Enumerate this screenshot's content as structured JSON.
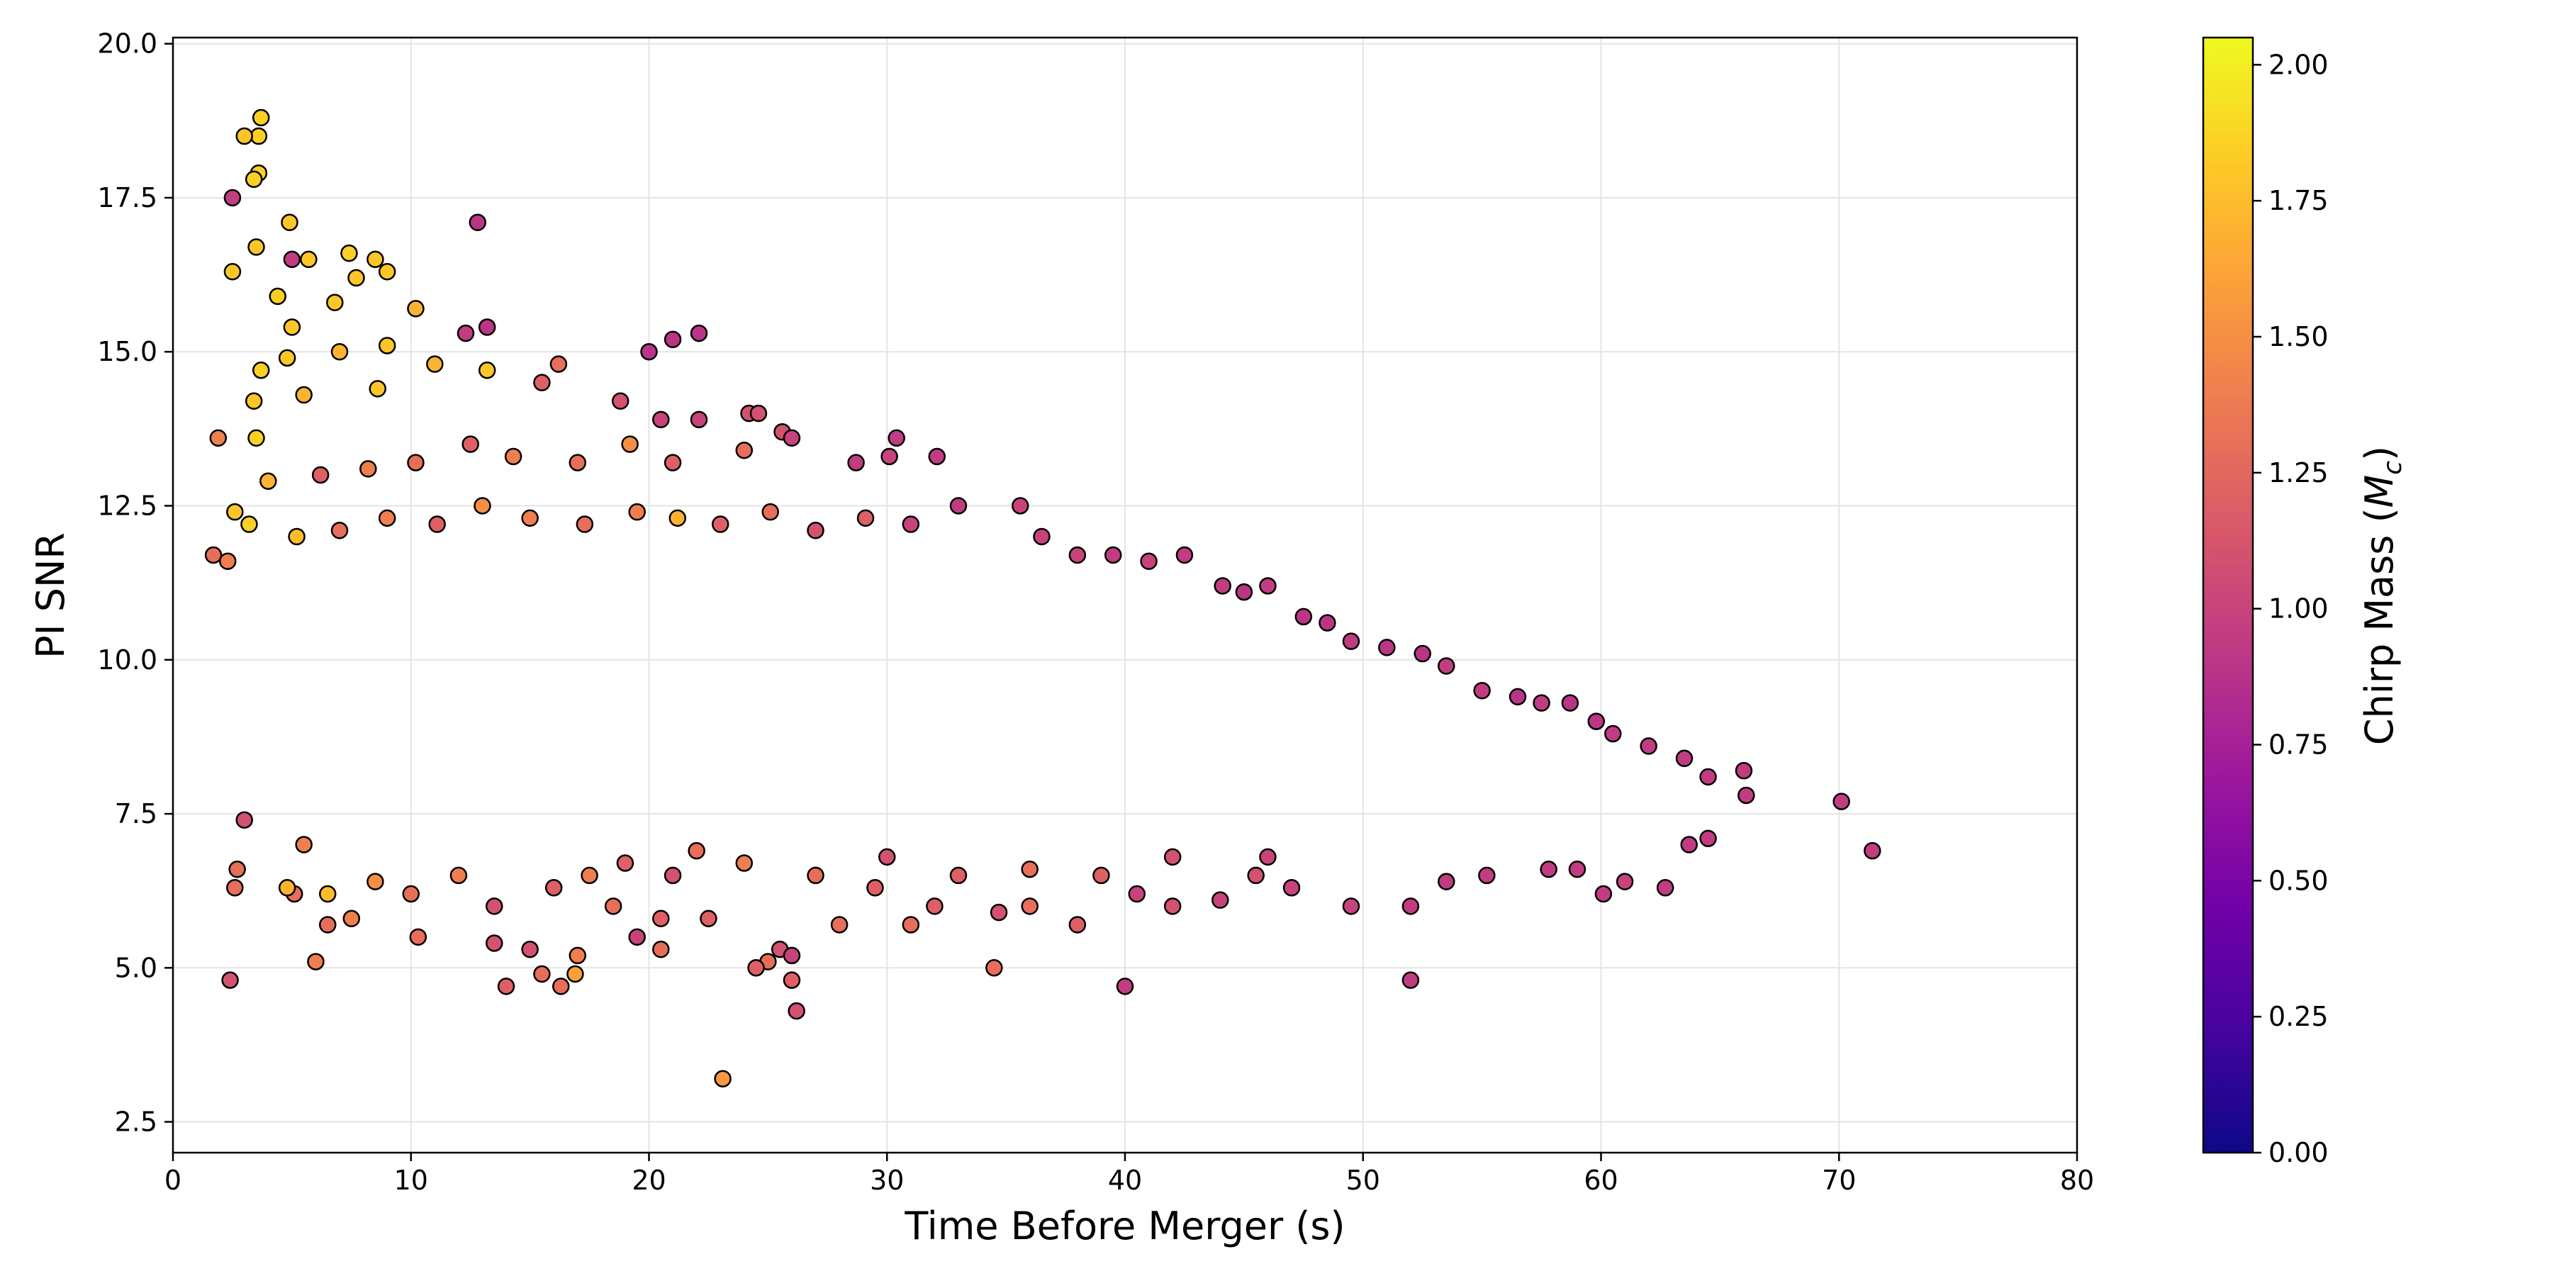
{
  "chart_data": {
    "type": "scatter",
    "title": "",
    "xlabel": "Time Before Merger (s)",
    "ylabel": "PI SNR",
    "xlim": [
      0,
      80
    ],
    "ylim": [
      2.0,
      20.1
    ],
    "x_ticks": [
      "0",
      "10",
      "20",
      "30",
      "40",
      "50",
      "60",
      "70",
      "80"
    ],
    "y_ticks": [
      "2.5",
      "5.0",
      "7.5",
      "10.0",
      "12.5",
      "15.0",
      "17.5",
      "20.0"
    ],
    "grid": true,
    "colorbar": {
      "label": "Chirp Mass (M_c)",
      "label_prefix": "Chirp Mass (",
      "label_symbol": "M",
      "label_subscript": "c",
      "label_suffix": ")",
      "range": [
        0.0,
        2.05
      ],
      "ticks": [
        "0.00",
        "0.25",
        "0.50",
        "0.75",
        "1.00",
        "1.25",
        "1.50",
        "1.75",
        "2.00"
      ],
      "colormap": "plasma",
      "colors": [
        "#0d0887",
        "#46039f",
        "#7201a8",
        "#9c179e",
        "#bd3786",
        "#d8576b",
        "#ed7953",
        "#fb9f3a",
        "#fdca26",
        "#f0f921"
      ]
    },
    "marker_edge_color": "#000000",
    "points": [
      [
        3.7,
        18.8,
        1.85
      ],
      [
        3.6,
        18.5,
        1.85
      ],
      [
        3.0,
        18.5,
        1.8
      ],
      [
        3.6,
        17.9,
        1.85
      ],
      [
        3.4,
        17.8,
        1.85
      ],
      [
        2.5,
        17.5,
        0.95
      ],
      [
        4.9,
        17.1,
        1.8
      ],
      [
        12.8,
        17.1,
        0.9
      ],
      [
        3.5,
        16.7,
        1.8
      ],
      [
        7.4,
        16.6,
        1.85
      ],
      [
        2.5,
        16.3,
        1.8
      ],
      [
        8.5,
        16.5,
        1.8
      ],
      [
        5.7,
        16.5,
        1.8
      ],
      [
        5.0,
        16.5,
        0.95
      ],
      [
        7.7,
        16.2,
        1.8
      ],
      [
        9.0,
        16.3,
        1.8
      ],
      [
        4.4,
        15.9,
        1.85
      ],
      [
        6.8,
        15.8,
        1.8
      ],
      [
        10.2,
        15.7,
        1.7
      ],
      [
        13.2,
        15.4,
        0.9
      ],
      [
        5.0,
        15.4,
        1.8
      ],
      [
        9.0,
        15.1,
        1.8
      ],
      [
        12.3,
        15.3,
        0.95
      ],
      [
        21.0,
        15.2,
        0.9
      ],
      [
        22.1,
        15.3,
        0.9
      ],
      [
        20.0,
        15.0,
        0.9
      ],
      [
        7.0,
        15.0,
        1.7
      ],
      [
        11.0,
        14.8,
        1.7
      ],
      [
        3.7,
        14.7,
        1.85
      ],
      [
        4.8,
        14.9,
        1.8
      ],
      [
        16.2,
        14.8,
        1.3
      ],
      [
        13.2,
        14.7,
        1.8
      ],
      [
        15.5,
        14.5,
        1.2
      ],
      [
        5.5,
        14.3,
        1.7
      ],
      [
        3.4,
        14.2,
        1.8
      ],
      [
        18.8,
        14.2,
        1.1
      ],
      [
        8.6,
        14.4,
        1.8
      ],
      [
        24.2,
        14.0,
        1.1
      ],
      [
        24.6,
        14.0,
        1.1
      ],
      [
        20.5,
        13.9,
        1.0
      ],
      [
        22.1,
        13.9,
        1.0
      ],
      [
        3.5,
        13.6,
        1.85
      ],
      [
        1.9,
        13.6,
        1.4
      ],
      [
        25.6,
        13.7,
        1.1
      ],
      [
        26.0,
        13.6,
        1.0
      ],
      [
        30.4,
        13.6,
        0.95
      ],
      [
        32.1,
        13.3,
        0.95
      ],
      [
        28.7,
        13.2,
        0.95
      ],
      [
        30.1,
        13.3,
        1.0
      ],
      [
        24.0,
        13.4,
        1.3
      ],
      [
        21.0,
        13.2,
        1.2
      ],
      [
        19.2,
        13.5,
        1.5
      ],
      [
        17.0,
        13.2,
        1.3
      ],
      [
        14.3,
        13.3,
        1.4
      ],
      [
        12.5,
        13.5,
        1.2
      ],
      [
        10.2,
        13.2,
        1.3
      ],
      [
        8.2,
        13.1,
        1.4
      ],
      [
        6.2,
        13.0,
        1.2
      ],
      [
        4.0,
        12.9,
        1.7
      ],
      [
        2.6,
        12.4,
        1.8
      ],
      [
        1.7,
        11.7,
        1.3
      ],
      [
        2.3,
        11.6,
        1.4
      ],
      [
        3.2,
        12.2,
        1.85
      ],
      [
        5.2,
        12.0,
        1.75
      ],
      [
        7.0,
        12.1,
        1.3
      ],
      [
        9.0,
        12.3,
        1.4
      ],
      [
        11.1,
        12.2,
        1.2
      ],
      [
        13.0,
        12.5,
        1.5
      ],
      [
        15.0,
        12.3,
        1.4
      ],
      [
        17.3,
        12.2,
        1.3
      ],
      [
        19.5,
        12.4,
        1.4
      ],
      [
        21.2,
        12.3,
        1.7
      ],
      [
        23.0,
        12.2,
        1.2
      ],
      [
        25.1,
        12.4,
        1.3
      ],
      [
        27.0,
        12.1,
        1.1
      ],
      [
        29.1,
        12.3,
        1.2
      ],
      [
        31.0,
        12.2,
        1.0
      ],
      [
        33.0,
        12.5,
        0.95
      ],
      [
        35.6,
        12.5,
        1.0
      ],
      [
        36.5,
        12.0,
        1.0
      ],
      [
        38.0,
        11.7,
        1.0
      ],
      [
        39.5,
        11.7,
        0.95
      ],
      [
        41.0,
        11.6,
        1.0
      ],
      [
        42.5,
        11.7,
        0.95
      ],
      [
        44.1,
        11.2,
        0.95
      ],
      [
        45.0,
        11.1,
        0.9
      ],
      [
        46.0,
        11.2,
        0.95
      ],
      [
        47.5,
        10.7,
        0.9
      ],
      [
        48.5,
        10.6,
        0.9
      ],
      [
        49.5,
        10.3,
        0.95
      ],
      [
        51.0,
        10.2,
        0.9
      ],
      [
        52.5,
        10.1,
        0.9
      ],
      [
        53.5,
        9.9,
        0.95
      ],
      [
        55.0,
        9.5,
        0.95
      ],
      [
        56.5,
        9.4,
        0.9
      ],
      [
        57.5,
        9.3,
        0.95
      ],
      [
        58.7,
        9.3,
        0.9
      ],
      [
        59.8,
        9.0,
        0.9
      ],
      [
        60.5,
        8.8,
        0.95
      ],
      [
        62.0,
        8.6,
        0.95
      ],
      [
        63.5,
        8.4,
        0.95
      ],
      [
        64.5,
        8.1,
        0.95
      ],
      [
        66.0,
        8.2,
        0.95
      ],
      [
        66.1,
        7.8,
        0.95
      ],
      [
        70.1,
        7.7,
        0.95
      ],
      [
        71.4,
        6.9,
        0.95
      ],
      [
        64.5,
        7.1,
        0.95
      ],
      [
        63.7,
        7.0,
        0.95
      ],
      [
        62.7,
        6.3,
        0.95
      ],
      [
        61.0,
        6.4,
        1.0
      ],
      [
        60.1,
        6.2,
        0.95
      ],
      [
        59.0,
        6.6,
        0.95
      ],
      [
        57.8,
        6.6,
        0.95
      ],
      [
        55.2,
        6.5,
        0.95
      ],
      [
        53.5,
        6.4,
        0.95
      ],
      [
        52.0,
        6.0,
        0.95
      ],
      [
        49.5,
        6.0,
        1.0
      ],
      [
        52.0,
        4.8,
        0.95
      ],
      [
        40.0,
        4.7,
        0.95
      ],
      [
        47.0,
        6.3,
        1.0
      ],
      [
        45.5,
        6.5,
        1.1
      ],
      [
        44.0,
        6.1,
        1.0
      ],
      [
        42.0,
        6.0,
        1.1
      ],
      [
        40.5,
        6.2,
        1.0
      ],
      [
        38.0,
        5.7,
        1.2
      ],
      [
        36.0,
        6.0,
        1.3
      ],
      [
        34.5,
        5.0,
        1.3
      ],
      [
        34.7,
        5.9,
        1.1
      ],
      [
        32.0,
        6.0,
        1.2
      ],
      [
        31.0,
        5.7,
        1.3
      ],
      [
        29.5,
        6.3,
        1.2
      ],
      [
        28.0,
        5.7,
        1.3
      ],
      [
        26.2,
        4.3,
        1.1
      ],
      [
        26.0,
        4.8,
        1.2
      ],
      [
        25.0,
        5.1,
        1.3
      ],
      [
        24.5,
        5.0,
        1.2
      ],
      [
        25.5,
        5.3,
        1.1
      ],
      [
        26.0,
        5.2,
        1.0
      ],
      [
        23.1,
        3.2,
        1.55
      ],
      [
        22.5,
        5.8,
        1.2
      ],
      [
        20.5,
        5.3,
        1.3
      ],
      [
        20.5,
        5.8,
        1.2
      ],
      [
        19.5,
        5.5,
        1.0
      ],
      [
        18.5,
        6.0,
        1.3
      ],
      [
        17.0,
        5.2,
        1.4
      ],
      [
        16.9,
        4.9,
        1.6
      ],
      [
        16.3,
        4.7,
        1.3
      ],
      [
        15.5,
        4.9,
        1.3
      ],
      [
        15.0,
        5.3,
        1.1
      ],
      [
        14.0,
        4.7,
        1.2
      ],
      [
        13.5,
        5.4,
        1.1
      ],
      [
        10.3,
        5.5,
        1.3
      ],
      [
        7.5,
        5.8,
        1.4
      ],
      [
        6.5,
        5.7,
        1.3
      ],
      [
        6.0,
        5.1,
        1.4
      ],
      [
        2.4,
        4.8,
        1.1
      ],
      [
        6.5,
        6.2,
        1.75
      ],
      [
        5.1,
        6.2,
        1.3
      ],
      [
        4.8,
        6.3,
        1.7
      ],
      [
        2.6,
        6.3,
        1.3
      ],
      [
        3.0,
        7.4,
        1.1
      ],
      [
        2.7,
        6.6,
        1.3
      ],
      [
        5.5,
        7.0,
        1.4
      ],
      [
        8.5,
        6.4,
        1.5
      ],
      [
        10.0,
        6.2,
        1.3
      ],
      [
        12.0,
        6.5,
        1.4
      ],
      [
        13.5,
        6.0,
        1.1
      ],
      [
        16.0,
        6.3,
        1.2
      ],
      [
        17.5,
        6.5,
        1.4
      ],
      [
        19.0,
        6.7,
        1.2
      ],
      [
        21.0,
        6.5,
        1.1
      ],
      [
        22.0,
        6.9,
        1.3
      ],
      [
        24.0,
        6.7,
        1.4
      ],
      [
        27.0,
        6.5,
        1.3
      ],
      [
        30.0,
        6.8,
        1.1
      ],
      [
        33.0,
        6.5,
        1.2
      ],
      [
        36.0,
        6.6,
        1.3
      ],
      [
        39.0,
        6.5,
        1.2
      ],
      [
        42.0,
        6.8,
        1.1
      ],
      [
        46.0,
        6.8,
        1.0
      ]
    ]
  }
}
